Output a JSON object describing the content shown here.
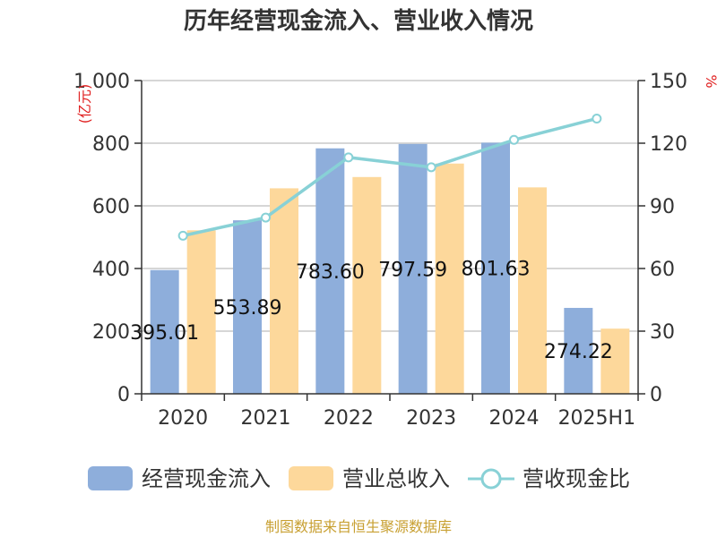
{
  "title": "历年经营现金流入、营业收入情况",
  "source": "制图数据来自恒生聚源数据库",
  "left_unit": "(亿元)",
  "right_unit": "%",
  "colors": {
    "cash_inflow": "#8eaedb",
    "revenue": "#fdd89b",
    "ratio": "#88d1d6",
    "grid": "#c8c8c8",
    "axis": "#333333"
  },
  "chart_data": {
    "type": "bar",
    "categories": [
      "2020",
      "2021",
      "2022",
      "2023",
      "2024",
      "2025H1"
    ],
    "series": [
      {
        "name": "经营现金流入",
        "type": "bar",
        "axis": "left",
        "values": [
          395.01,
          553.89,
          783.6,
          797.59,
          801.63,
          274.22
        ],
        "labels": [
          "395.01",
          "553.89",
          "783.60",
          "797.59",
          "801.63",
          "274.22"
        ]
      },
      {
        "name": "营业总收入",
        "type": "bar",
        "axis": "left",
        "values": [
          522,
          656,
          692,
          735,
          659,
          208
        ]
      },
      {
        "name": "营收现金比",
        "type": "line",
        "axis": "right",
        "values": [
          75.7,
          84.4,
          113.2,
          108.5,
          121.6,
          131.8
        ]
      }
    ],
    "y_left": {
      "min": 0,
      "max": 1000,
      "ticks": [
        0,
        200,
        400,
        600,
        800,
        1000
      ],
      "tick_labels": [
        "0",
        "200",
        "400",
        "600",
        "800",
        "1 000"
      ]
    },
    "y_right": {
      "min": 0,
      "max": 150,
      "ticks": [
        0,
        30,
        60,
        90,
        120,
        150
      ]
    },
    "grid": true,
    "legend_position": "bottom"
  }
}
